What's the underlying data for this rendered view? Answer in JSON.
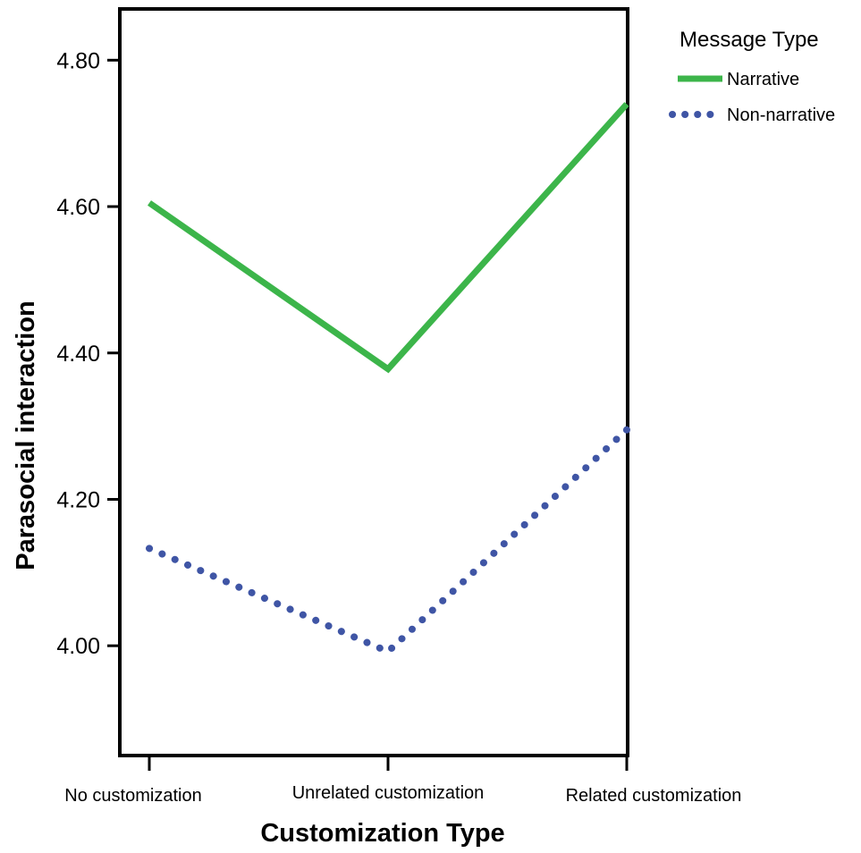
{
  "chart_data": {
    "type": "line",
    "xlabel": "Customization Type",
    "ylabel": "Parasocial interaction",
    "categories": [
      "No customization",
      "Unrelated customization",
      "Related customization"
    ],
    "ylim": [
      3.85,
      4.87
    ],
    "yticks": [
      "4.00",
      "4.20",
      "4.40",
      "4.60",
      "4.80"
    ],
    "legend": {
      "title": "Message Type",
      "position": "top-right-outside"
    },
    "grid": false,
    "series": [
      {
        "name": "Narrative",
        "values": [
          4.605,
          4.378,
          4.74
        ],
        "color": "#3cb54a",
        "style": "solid"
      },
      {
        "name": "Non-narrative",
        "values": [
          4.133,
          3.992,
          4.295
        ],
        "color": "#3f55a5",
        "style": "dotted"
      }
    ]
  }
}
